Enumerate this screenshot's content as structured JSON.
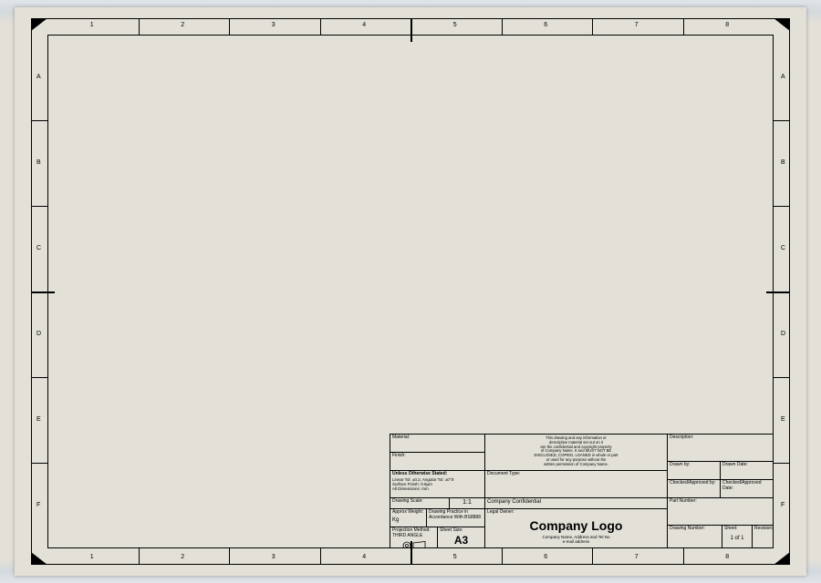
{
  "sheet": {
    "bg_color": "#e3e0d8",
    "border_color": "#000000"
  },
  "zones": {
    "cols": [
      "1",
      "2",
      "3",
      "4",
      "5",
      "6",
      "7",
      "8"
    ],
    "rows": [
      "A",
      "B",
      "C",
      "D",
      "E",
      "F"
    ]
  },
  "titleblock": {
    "material_lbl": "Material:",
    "finish_lbl": "Finish:",
    "tolerance_header": "Unless Otherwise Stated:",
    "tolerance_lines": "Linear Tol: ±0.2, Angular Tol: ±0°5'\nSurface Finish: 0.8µm\nAll Dimensions: mm",
    "scale_lbl": "Drawing Scale:",
    "scale_val": "1:1",
    "weight_lbl": "Approx Weight:",
    "weight_unit": "Kg",
    "drawing_practice_lbl": "Drawing Practice in\nAccordance With BS8888",
    "projection_lbl": "Projection Method:\nTHIRD ANGLE",
    "sheet_size_lbl": "Sheet Size:",
    "sheet_size_val": "A3",
    "confidential": "Company Confidential",
    "statement": "This drawing and any information or\ndescriptive material set out on it\nare the confidential and copyright property\nof Company Name. It and MUST NOT BE\nDISCLOSED, COPIED, LOANED in whole or part\nor used for any purpose without the\nwritten permission of Company Name.",
    "doc_type_lbl": "Document Type:",
    "legal_owner_lbl": "Legal Owner:",
    "logo": "Company Logo",
    "logo_sub": "Company Name, Address and Tel No\ne-mail address",
    "description_lbl": "Description:",
    "drawn_by_lbl": "Drawn by:",
    "drawn_date_lbl": "Drawn Date:",
    "checked_by_lbl": "Checked/Approved by:",
    "checked_date_lbl": "Checked/Approved Date:",
    "part_number_lbl": "Part Number:",
    "drawing_number_lbl": "Drawing Number:",
    "sheet_lbl": "Sheet:",
    "sheet_val": "1 of 1",
    "revision_lbl": "Revision:"
  }
}
